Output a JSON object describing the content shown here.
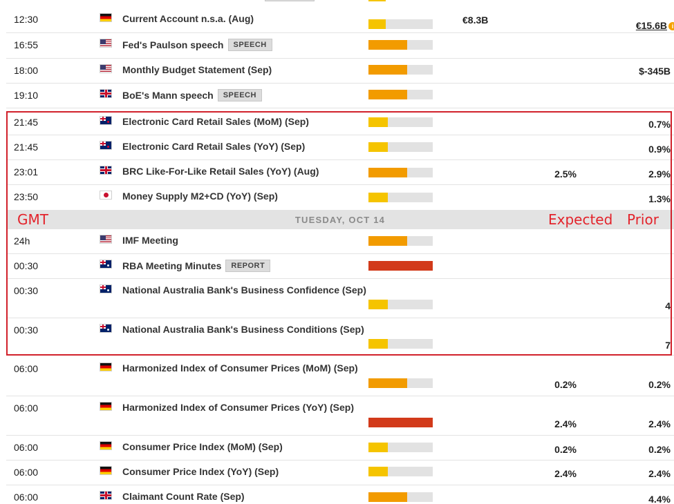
{
  "colors": {
    "impact_low": "#f5c400",
    "impact_medium": "#f29b00",
    "impact_high": "#d23a1a",
    "annotation_red": "#e3232b"
  },
  "day_separator": {
    "label": "TUESDAY, OCT 14"
  },
  "annotations": {
    "gmt": "GMT",
    "expected": "Expected",
    "prior": "Prior"
  },
  "events": [
    {
      "time": "12:30",
      "country": "de",
      "event": "Current Account n.s.a. (Aug)",
      "tag": "",
      "impact": "low",
      "impact_level": 0.27,
      "actual": "€8.3B",
      "expected": "",
      "prior": "€15.6B",
      "prior_revised": true
    },
    {
      "time": "16:55",
      "country": "us",
      "event": "Fed's Paulson speech",
      "tag": "SPEECH",
      "impact": "medium",
      "impact_level": 0.6,
      "actual": "",
      "expected": "",
      "prior": ""
    },
    {
      "time": "18:00",
      "country": "us",
      "event": "Monthly Budget Statement (Sep)",
      "tag": "",
      "impact": "medium",
      "impact_level": 0.6,
      "actual": "",
      "expected": "",
      "prior": "$-345B"
    },
    {
      "time": "19:10",
      "country": "gb",
      "event": "BoE's Mann speech",
      "tag": "SPEECH",
      "impact": "medium",
      "impact_level": 0.6,
      "actual": "",
      "expected": "",
      "prior": ""
    },
    {
      "time": "21:45",
      "country": "nz",
      "event": "Electronic Card Retail Sales (MoM) (Sep)",
      "tag": "",
      "impact": "low",
      "impact_level": 0.3,
      "actual": "",
      "expected": "",
      "prior": "0.7%"
    },
    {
      "time": "21:45",
      "country": "nz",
      "event": "Electronic Card Retail Sales (YoY) (Sep)",
      "tag": "",
      "impact": "low",
      "impact_level": 0.3,
      "actual": "",
      "expected": "",
      "prior": "0.9%"
    },
    {
      "time": "23:01",
      "country": "gb",
      "event": "BRC Like-For-Like Retail Sales (YoY) (Aug)",
      "tag": "",
      "impact": "medium",
      "impact_level": 0.6,
      "actual": "",
      "expected": "2.5%",
      "prior": "2.9%"
    },
    {
      "time": "23:50",
      "country": "jp",
      "event": "Money Supply M2+CD (YoY) (Sep)",
      "tag": "",
      "impact": "low",
      "impact_level": 0.3,
      "actual": "",
      "expected": "",
      "prior": "1.3%"
    },
    {
      "time": "24h",
      "country": "us",
      "event": "IMF Meeting",
      "tag": "",
      "impact": "medium",
      "impact_level": 0.6,
      "actual": "",
      "expected": "",
      "prior": ""
    },
    {
      "time": "00:30",
      "country": "au",
      "event": "RBA Meeting Minutes",
      "tag": "REPORT",
      "impact": "high",
      "impact_level": 1.0,
      "actual": "",
      "expected": "",
      "prior": ""
    },
    {
      "time": "00:30",
      "country": "au",
      "event": "National Australia Bank's Business Confidence (Sep)",
      "tag": "",
      "impact": "low",
      "impact_level": 0.3,
      "actual": "",
      "expected": "",
      "prior": "4"
    },
    {
      "time": "00:30",
      "country": "au",
      "event": "National Australia Bank's Business Conditions (Sep)",
      "tag": "",
      "impact": "low",
      "impact_level": 0.3,
      "actual": "",
      "expected": "",
      "prior": "7"
    },
    {
      "time": "06:00",
      "country": "de",
      "event": "Harmonized Index of Consumer Prices (MoM) (Sep)",
      "tag": "",
      "impact": "medium",
      "impact_level": 0.6,
      "actual": "",
      "expected": "0.2%",
      "prior": "0.2%"
    },
    {
      "time": "06:00",
      "country": "de",
      "event": "Harmonized Index of Consumer Prices (YoY) (Sep)",
      "tag": "",
      "impact": "high",
      "impact_level": 1.0,
      "actual": "",
      "expected": "2.4%",
      "prior": "2.4%"
    },
    {
      "time": "06:00",
      "country": "de",
      "event": "Consumer Price Index (MoM) (Sep)",
      "tag": "",
      "impact": "low",
      "impact_level": 0.3,
      "actual": "",
      "expected": "0.2%",
      "prior": "0.2%"
    },
    {
      "time": "06:00",
      "country": "de",
      "event": "Consumer Price Index (YoY) (Sep)",
      "tag": "",
      "impact": "low",
      "impact_level": 0.3,
      "actual": "",
      "expected": "2.4%",
      "prior": "2.4%"
    },
    {
      "time": "06:00",
      "country": "gb",
      "event": "Claimant Count Rate (Sep)",
      "tag": "",
      "impact": "medium",
      "impact_level": 0.6,
      "actual": "",
      "expected": "",
      "prior": "4.4%"
    }
  ]
}
